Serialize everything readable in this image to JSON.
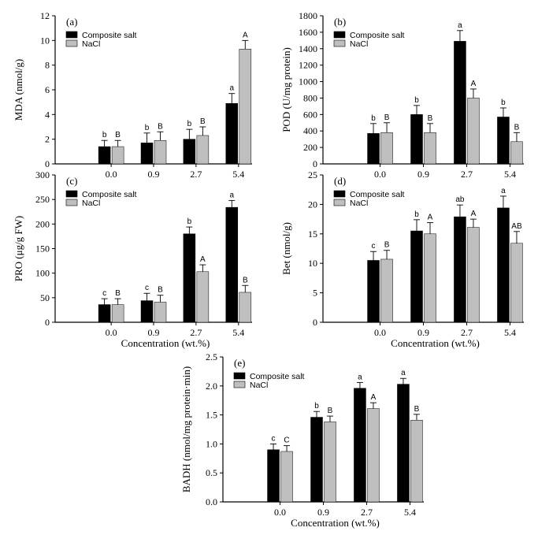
{
  "colors": {
    "composite": "#000000",
    "nacl": "#bfbfbf",
    "axis": "#000000"
  },
  "chart_data": [
    {
      "type": "bar",
      "title": "",
      "panel_label": "(a)",
      "categories": [
        "0.0",
        "0.9",
        "2.7",
        "5.4"
      ],
      "xlabel": "",
      "ylabel": "MDA (nmol/g)",
      "ylim": [
        0,
        12
      ],
      "yticks": [
        "0",
        "2",
        "4",
        "6",
        "8",
        "10",
        "12"
      ],
      "legend": "top-left",
      "grid": false,
      "series": [
        {
          "name": "Composite salt",
          "values": [
            1.4,
            1.7,
            2.0,
            4.9
          ],
          "errors": [
            0.5,
            0.8,
            0.8,
            0.8
          ],
          "labels": [
            "b",
            "b",
            "b",
            "a"
          ]
        },
        {
          "name": "NaCl",
          "values": [
            1.4,
            1.9,
            2.3,
            9.3
          ],
          "errors": [
            0.5,
            0.7,
            0.7,
            0.7
          ],
          "labels": [
            "B",
            "B",
            "B",
            "A"
          ]
        }
      ]
    },
    {
      "type": "bar",
      "title": "",
      "panel_label": "(b)",
      "categories": [
        "0.0",
        "0.9",
        "2.7",
        "5.4"
      ],
      "xlabel": "",
      "ylabel": "POD (U/mg protein)",
      "ylim": [
        0,
        1800
      ],
      "yticks": [
        "0",
        "200",
        "400",
        "600",
        "800",
        "1000",
        "1200",
        "1400",
        "1600",
        "1800"
      ],
      "legend": "top-left",
      "grid": false,
      "series": [
        {
          "name": "Composite salt",
          "values": [
            370,
            600,
            1490,
            570
          ],
          "errors": [
            120,
            110,
            130,
            110
          ],
          "labels": [
            "b",
            "b",
            "a",
            "b"
          ]
        },
        {
          "name": "NaCl",
          "values": [
            380,
            380,
            800,
            270
          ],
          "errors": [
            120,
            110,
            110,
            110
          ],
          "labels": [
            "B",
            "B",
            "A",
            "B"
          ]
        }
      ]
    },
    {
      "type": "bar",
      "title": "",
      "panel_label": "(c)",
      "categories": [
        "0.0",
        "0.9",
        "2.7",
        "5.4"
      ],
      "xlabel": "Concentration (wt.%)",
      "ylabel": "PRO (μg/g FW)",
      "ylim": [
        0,
        300
      ],
      "yticks": [
        "0",
        "50",
        "100",
        "150",
        "200",
        "250",
        "300"
      ],
      "legend": "top-left",
      "grid": false,
      "series": [
        {
          "name": "Composite salt",
          "values": [
            36,
            44,
            180,
            234
          ],
          "errors": [
            12,
            15,
            14,
            14
          ],
          "labels": [
            "c",
            "c",
            "b",
            "a"
          ]
        },
        {
          "name": "NaCl",
          "values": [
            36,
            41,
            103,
            61
          ],
          "errors": [
            12,
            14,
            14,
            14
          ],
          "labels": [
            "B",
            "B",
            "A",
            "B"
          ]
        }
      ]
    },
    {
      "type": "bar",
      "title": "",
      "panel_label": "(d)",
      "categories": [
        "0.0",
        "0.9",
        "2.7",
        "5.4"
      ],
      "xlabel": "Concentration (wt.%)",
      "ylabel": "Bet (nmol/g)",
      "ylim": [
        0,
        25
      ],
      "yticks": [
        "0",
        "5",
        "10",
        "15",
        "20",
        "25"
      ],
      "legend": "top-left",
      "grid": false,
      "series": [
        {
          "name": "Composite salt",
          "values": [
            10.5,
            15.5,
            17.9,
            19.4
          ],
          "errors": [
            1.5,
            1.9,
            2.0,
            2.0
          ],
          "labels": [
            "c",
            "b",
            "ab",
            "a"
          ]
        },
        {
          "name": "NaCl",
          "values": [
            10.7,
            15.0,
            16.1,
            13.4
          ],
          "errors": [
            1.5,
            1.9,
            1.4,
            2.0
          ],
          "labels": [
            "B",
            "A",
            "A",
            "AB"
          ]
        }
      ]
    },
    {
      "type": "bar",
      "title": "",
      "panel_label": "(e)",
      "categories": [
        "0.0",
        "0.9",
        "2.7",
        "5.4"
      ],
      "xlabel": "Concentration (wt.%)",
      "ylabel": "BADH (nmol/mg protein·min)",
      "ylim": [
        0,
        2.5
      ],
      "yticks": [
        "0.0",
        "0.5",
        "1.0",
        "1.5",
        "2.0",
        "2.5"
      ],
      "legend": "top-left",
      "grid": false,
      "series": [
        {
          "name": "Composite salt",
          "values": [
            0.9,
            1.46,
            1.96,
            2.03
          ],
          "errors": [
            0.1,
            0.1,
            0.1,
            0.1
          ],
          "labels": [
            "c",
            "b",
            "a",
            "a"
          ]
        },
        {
          "name": "NaCl",
          "values": [
            0.87,
            1.38,
            1.61,
            1.41
          ],
          "errors": [
            0.1,
            0.1,
            0.1,
            0.1
          ],
          "labels": [
            "C",
            "B",
            "A",
            "B"
          ]
        }
      ]
    }
  ]
}
